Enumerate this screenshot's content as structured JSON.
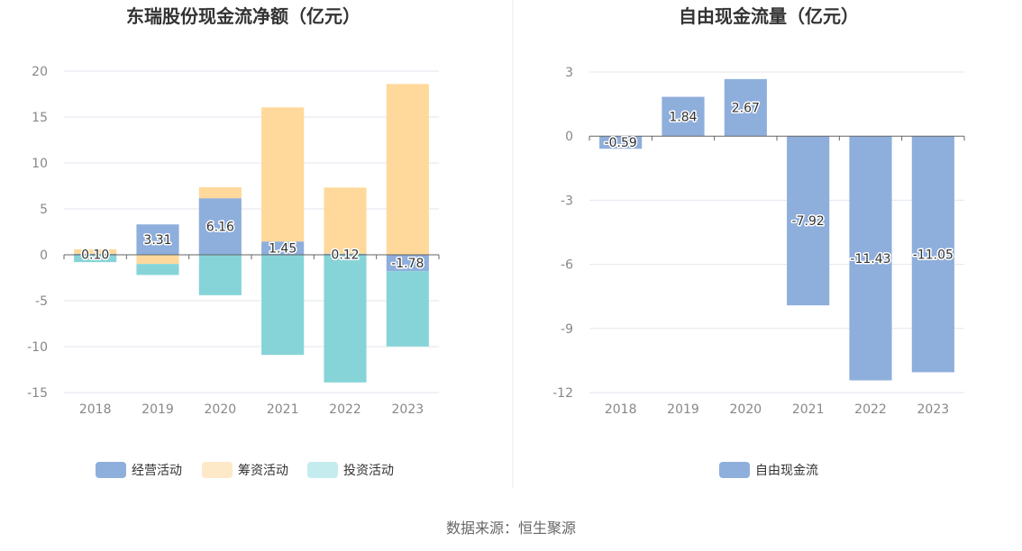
{
  "colors": {
    "operating": "#8eaedc",
    "financing": "#ffd99b",
    "investing": "#86d4d8",
    "fcf": "#8eaedc",
    "legend_financing": "#fde8c8",
    "legend_investing": "#c4ecef",
    "grid": "#e3e6ee",
    "zero_line": "#666666",
    "divider": "#e8e8e8"
  },
  "source_text": "数据来源：恒生聚源",
  "chart_data": [
    {
      "type": "bar",
      "stacked": true,
      "title": "东瑞股份现金流净额（亿元）",
      "categories": [
        "2018",
        "2019",
        "2020",
        "2021",
        "2022",
        "2023"
      ],
      "ylim": [
        -15,
        20
      ],
      "yticks": [
        "20",
        "15",
        "10",
        "5",
        "0",
        "-5",
        "-10",
        "-15"
      ],
      "ytick_values": [
        20,
        15,
        10,
        5,
        0,
        -5,
        -10,
        -15
      ],
      "grid": true,
      "legend_position": "bottom",
      "series": [
        {
          "name": "经营活动",
          "values": [
            0.1,
            3.31,
            6.16,
            1.45,
            0.12,
            -1.78
          ],
          "labels": [
            "0.10",
            "3.31",
            "6.16",
            "1.45",
            "0.12",
            "-1.78"
          ]
        },
        {
          "name": "筹资活动",
          "values": [
            0.5,
            -1.0,
            1.2,
            14.6,
            7.2,
            18.6
          ]
        },
        {
          "name": "投资活动",
          "values": [
            -0.8,
            -1.2,
            -4.4,
            -10.9,
            -13.9,
            -8.2
          ]
        }
      ]
    },
    {
      "type": "bar",
      "title": "自由现金流量（亿元）",
      "categories": [
        "2018",
        "2019",
        "2020",
        "2021",
        "2022",
        "2023"
      ],
      "ylim": [
        -12,
        3
      ],
      "yticks": [
        "3",
        "0",
        "-3",
        "-6",
        "-9",
        "-12"
      ],
      "ytick_values": [
        3,
        0,
        -3,
        -6,
        -9,
        -12
      ],
      "grid": true,
      "legend_position": "bottom",
      "series": [
        {
          "name": "自由现金流",
          "values": [
            -0.59,
            1.84,
            2.67,
            -7.92,
            -11.43,
            -11.05
          ],
          "labels": [
            "-0.59",
            "1.84",
            "2.67",
            "-7.92",
            "-11.43",
            "-11.05"
          ]
        }
      ]
    }
  ]
}
